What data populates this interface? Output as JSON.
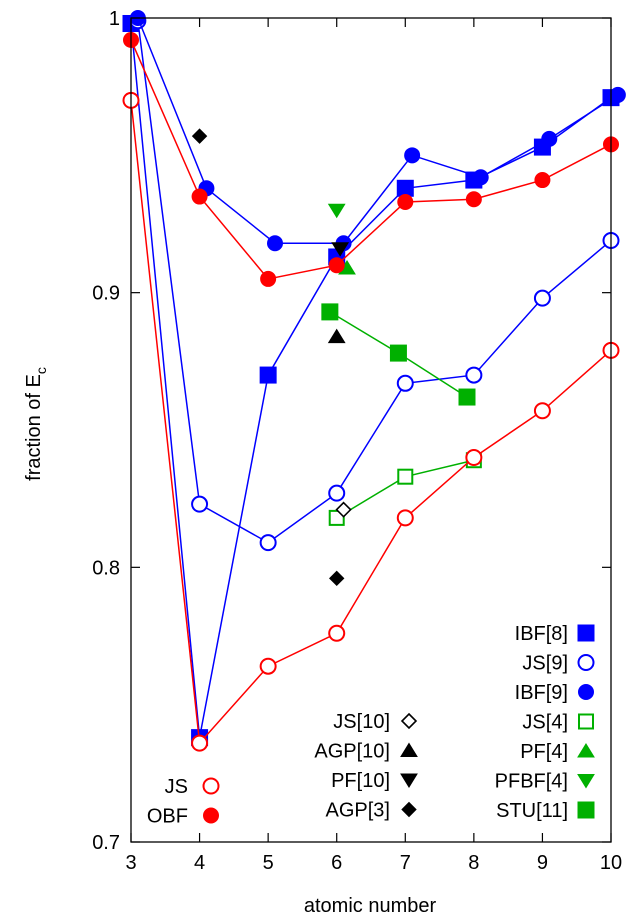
{
  "chart_data": {
    "type": "line",
    "xlabel": "atomic number",
    "ylabel": "fraction of E",
    "ylabel_sub": "c",
    "xlim": [
      3,
      10
    ],
    "ylim": [
      0.7,
      1.0
    ],
    "x_ticks": [
      3,
      4,
      5,
      6,
      7,
      8,
      9,
      10
    ],
    "y_ticks": [
      0.7,
      0.8,
      0.9,
      1.0
    ],
    "y_tick_labels": [
      "0.7",
      "0.8",
      "0.9",
      "1"
    ],
    "grid": false,
    "legend_placement": "bottom",
    "series": [
      {
        "name": "IBF[8]",
        "color": "#0000ff",
        "marker": "square",
        "filled": true,
        "line": true,
        "x": [
          3,
          4,
          5,
          6,
          7,
          8,
          9,
          10
        ],
        "y": [
          0.998,
          0.738,
          0.87,
          0.913,
          0.938,
          0.941,
          0.953,
          0.971
        ]
      },
      {
        "name": "JS[9]",
        "color": "#0000ff",
        "marker": "circle",
        "filled": false,
        "line": true,
        "x": [
          3.1,
          4,
          5,
          6,
          7,
          8,
          9,
          10
        ],
        "y": [
          0.999,
          0.823,
          0.809,
          0.827,
          0.867,
          0.87,
          0.898,
          0.919
        ]
      },
      {
        "name": "IBF[9]",
        "color": "#0000ff",
        "marker": "circle",
        "filled": true,
        "line": true,
        "x": [
          3.1,
          4.1,
          5.1,
          6.1,
          7.1,
          8.1,
          9.1,
          10.1
        ],
        "y": [
          1.0,
          0.938,
          0.918,
          0.918,
          0.95,
          0.942,
          0.956,
          0.972
        ]
      },
      {
        "name": "JS[4]",
        "color": "#00b000",
        "marker": "square",
        "filled": false,
        "line": true,
        "x": [
          6,
          7,
          8
        ],
        "y": [
          0.818,
          0.833,
          0.839
        ]
      },
      {
        "name": "PF[4]",
        "color": "#00b000",
        "marker": "triangle-up",
        "filled": true,
        "line": false,
        "x": [
          6.15
        ],
        "y": [
          0.909
        ]
      },
      {
        "name": "PFBF[4]",
        "color": "#00b000",
        "marker": "triangle-down",
        "filled": true,
        "line": false,
        "x": [
          6
        ],
        "y": [
          0.93
        ]
      },
      {
        "name": "STU[11]",
        "color": "#00b000",
        "marker": "square",
        "filled": true,
        "line": true,
        "x": [
          5.9,
          6.9,
          7.9
        ],
        "y": [
          0.893,
          0.878,
          0.862
        ]
      },
      {
        "name": "JS[10]",
        "color": "#000000",
        "marker": "diamond",
        "filled": false,
        "line": false,
        "x": [
          6.1
        ],
        "y": [
          0.821
        ]
      },
      {
        "name": "AGP[10]",
        "color": "#000000",
        "marker": "triangle-up",
        "filled": true,
        "line": false,
        "x": [
          6
        ],
        "y": [
          0.884
        ]
      },
      {
        "name": "PF[10]",
        "color": "#000000",
        "marker": "triangle-down",
        "filled": true,
        "line": false,
        "x": [
          6.05
        ],
        "y": [
          0.916
        ]
      },
      {
        "name": "AGP[3]",
        "color": "#000000",
        "marker": "diamond",
        "filled": true,
        "line": false,
        "x": [
          4,
          6
        ],
        "y": [
          0.957,
          0.796
        ]
      },
      {
        "name": "JS",
        "color": "#ff0000",
        "marker": "circle",
        "filled": false,
        "line": true,
        "x": [
          3,
          4,
          5,
          6,
          7,
          8,
          9,
          10
        ],
        "y": [
          0.97,
          0.736,
          0.764,
          0.776,
          0.818,
          0.84,
          0.857,
          0.879
        ]
      },
      {
        "name": "OBF",
        "color": "#ff0000",
        "marker": "circle",
        "filled": true,
        "line": true,
        "x": [
          3,
          4,
          5,
          6,
          7,
          8,
          9,
          10
        ],
        "y": [
          0.992,
          0.935,
          0.905,
          0.91,
          0.933,
          0.934,
          0.941,
          0.954
        ]
      }
    ],
    "legend": {
      "right_column": [
        "IBF[8]",
        "JS[9]",
        "IBF[9]",
        "JS[4]",
        "PF[4]",
        "PFBF[4]",
        "STU[11]"
      ],
      "middle_column": [
        "JS[10]",
        "AGP[10]",
        "PF[10]",
        "AGP[3]"
      ],
      "left_column": [
        "JS",
        "OBF"
      ]
    }
  }
}
